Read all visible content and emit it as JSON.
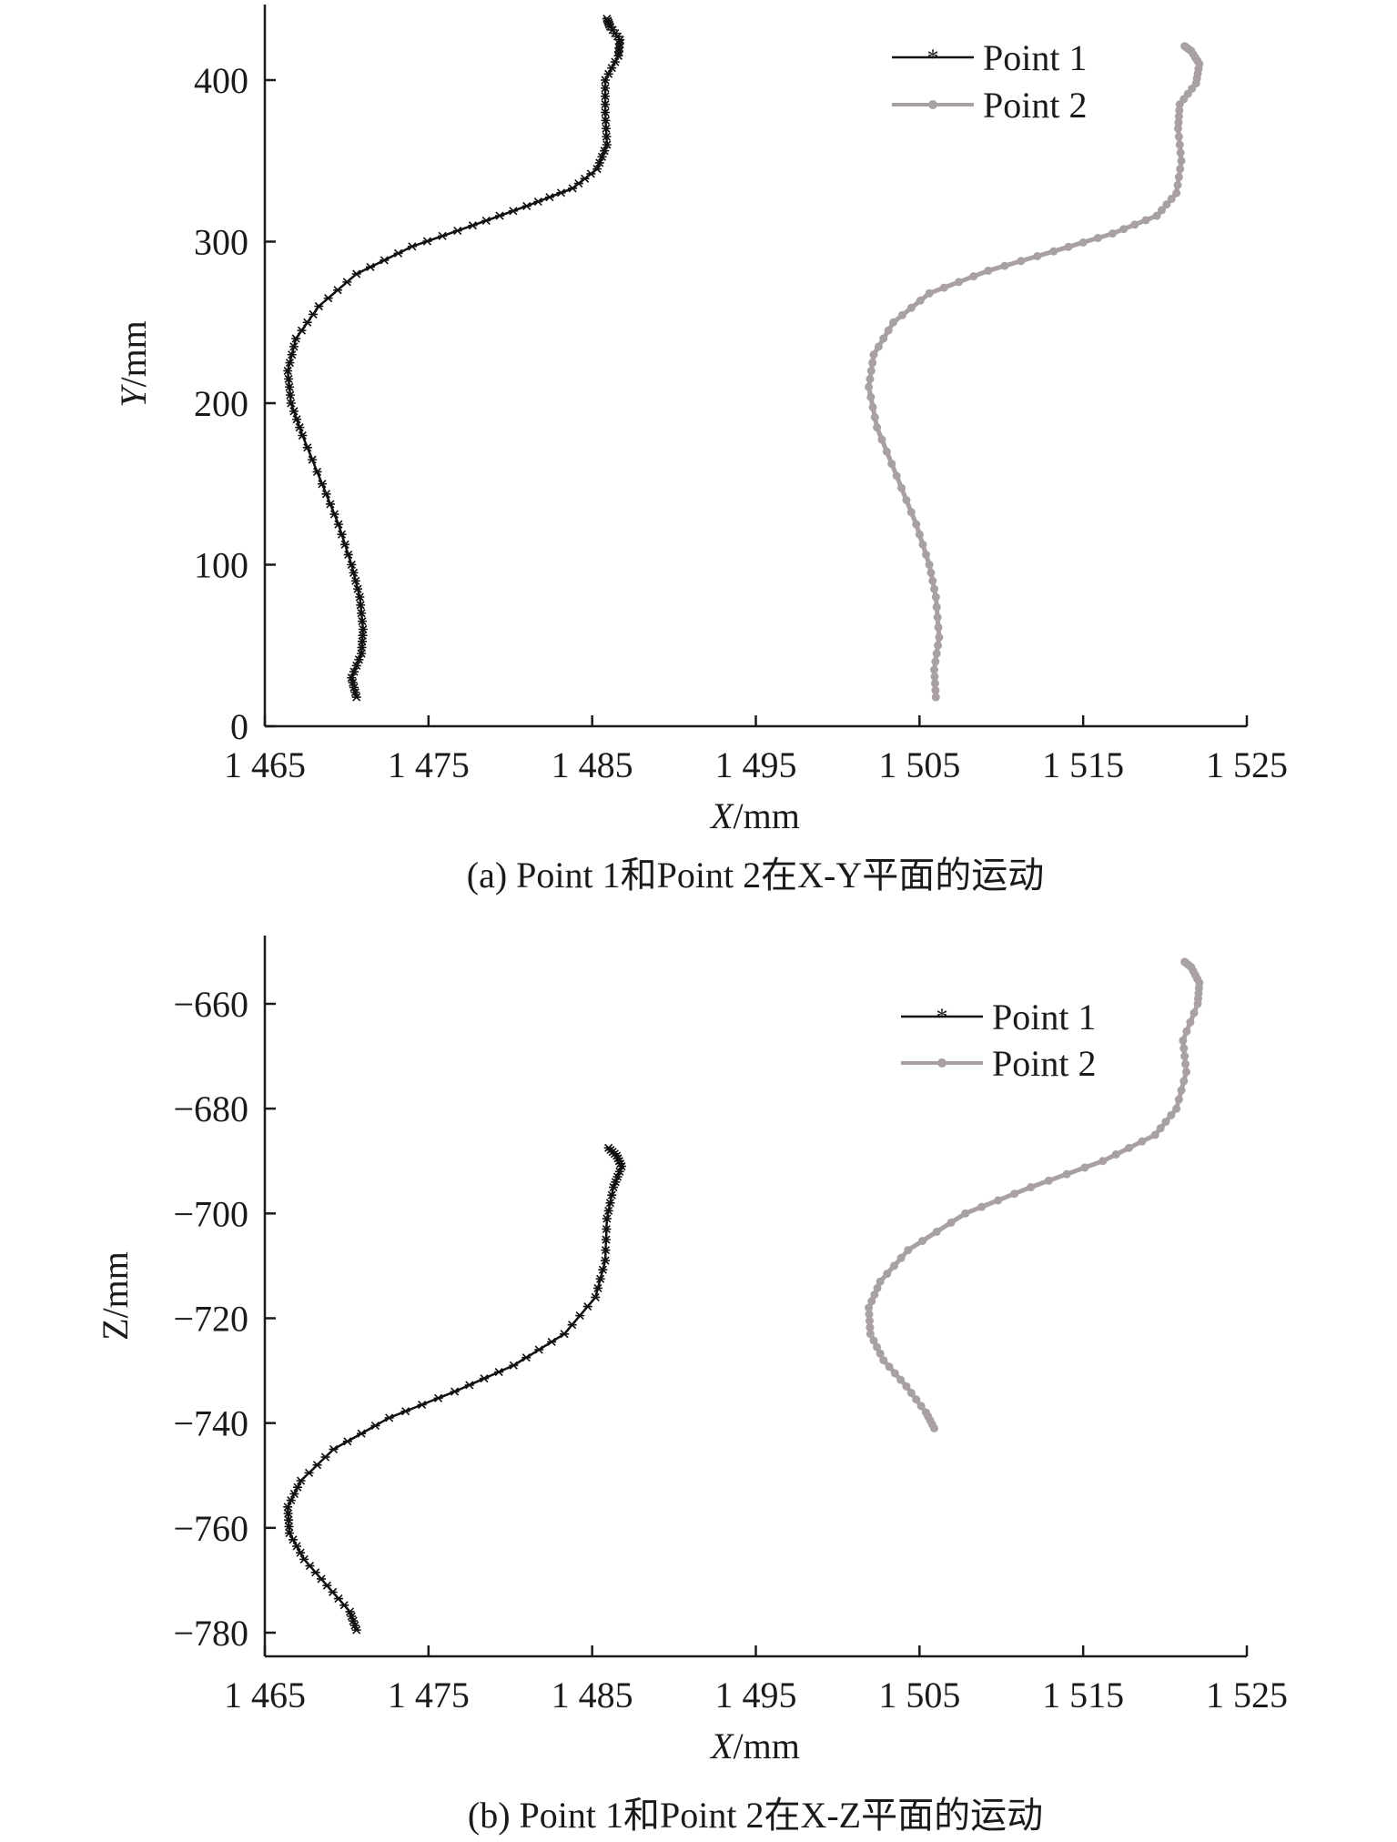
{
  "chart_data": [
    {
      "type": "line",
      "caption": "(a) Point 1和Point 2在X-Y平面的运动",
      "xlabel_var": "X",
      "xlabel_unit": "/mm",
      "ylabel_var": "Y",
      "ylabel_unit": "/mm",
      "xlim": [
        1465,
        1525
      ],
      "ylim": [
        0,
        440
      ],
      "xticks": [
        1465,
        1475,
        1485,
        1495,
        1505,
        1515,
        1525
      ],
      "xtick_labels": [
        "1 465",
        "1 475",
        "1 485",
        "1 495",
        "1 505",
        "1 515",
        "1 525"
      ],
      "yticks": [
        0,
        100,
        200,
        300,
        400
      ],
      "ytick_labels": [
        "0",
        "100",
        "200",
        "300",
        "400"
      ],
      "legend_position": "top-right",
      "grid": false,
      "series": [
        {
          "name": "Point 1",
          "color": "#111111",
          "marker": "star",
          "points": [
            [
              1470.6,
              18
            ],
            [
              1470.3,
              30
            ],
            [
              1470.9,
              45
            ],
            [
              1471.0,
              60
            ],
            [
              1470.8,
              80
            ],
            [
              1470.3,
              100
            ],
            [
              1469.5,
              125
            ],
            [
              1468.5,
              150
            ],
            [
              1467.3,
              180
            ],
            [
              1466.6,
              200
            ],
            [
              1466.4,
              220
            ],
            [
              1466.9,
              240
            ],
            [
              1468.3,
              260
            ],
            [
              1470.6,
              280
            ],
            [
              1474.0,
              297
            ],
            [
              1477.7,
              310
            ],
            [
              1481.0,
              322
            ],
            [
              1483.8,
              333
            ],
            [
              1485.3,
              345
            ],
            [
              1485.9,
              360
            ],
            [
              1485.8,
              380
            ],
            [
              1485.8,
              400
            ],
            [
              1486.6,
              415
            ],
            [
              1486.7,
              425
            ],
            [
              1486.1,
              433
            ],
            [
              1485.9,
              438
            ]
          ]
        },
        {
          "name": "Point 2",
          "color": "#a8a0a3",
          "marker": "circle",
          "points": [
            [
              1506.0,
              18
            ],
            [
              1505.9,
              35
            ],
            [
              1506.2,
              55
            ],
            [
              1506.0,
              80
            ],
            [
              1505.6,
              100
            ],
            [
              1504.8,
              125
            ],
            [
              1503.6,
              155
            ],
            [
              1502.4,
              185
            ],
            [
              1501.9,
              210
            ],
            [
              1502.2,
              230
            ],
            [
              1503.4,
              250
            ],
            [
              1505.6,
              268
            ],
            [
              1509.2,
              282
            ],
            [
              1513.2,
              294
            ],
            [
              1516.8,
              305
            ],
            [
              1519.5,
              316
            ],
            [
              1520.7,
              330
            ],
            [
              1521.0,
              350
            ],
            [
              1520.8,
              370
            ],
            [
              1520.9,
              385
            ],
            [
              1521.9,
              398
            ],
            [
              1522.1,
              410
            ],
            [
              1521.6,
              418
            ],
            [
              1521.2,
              421
            ]
          ]
        }
      ]
    },
    {
      "type": "line",
      "caption": "(b) Point 1和Point 2在X-Z平面的运动",
      "xlabel_var": "X",
      "xlabel_unit": "/mm",
      "ylabel_var": "Z",
      "ylabel_unit": "/mm",
      "xlim": [
        1465,
        1525
      ],
      "ylim": [
        -785,
        -647
      ],
      "xticks": [
        1465,
        1475,
        1485,
        1495,
        1505,
        1515,
        1525
      ],
      "xtick_labels": [
        "1 465",
        "1 475",
        "1 485",
        "1 495",
        "1 505",
        "1 515",
        "1 525"
      ],
      "yticks": [
        -660,
        -680,
        -700,
        -720,
        -740,
        -760,
        -780
      ],
      "ytick_labels": [
        "−660",
        "−680",
        "−700",
        "−720",
        "−740",
        "−760",
        "−780"
      ],
      "legend_position": "top-right",
      "grid": false,
      "series": [
        {
          "name": "Point 1",
          "color": "#111111",
          "marker": "star",
          "points": [
            [
              1470.6,
              -779.5
            ],
            [
              1470.2,
              -776
            ],
            [
              1468.8,
              -771
            ],
            [
              1467.4,
              -766
            ],
            [
              1466.5,
              -761
            ],
            [
              1466.4,
              -756
            ],
            [
              1467.2,
              -751
            ],
            [
              1469.2,
              -745
            ],
            [
              1472.6,
              -739
            ],
            [
              1476.6,
              -734
            ],
            [
              1480.2,
              -729
            ],
            [
              1483.3,
              -723
            ],
            [
              1485.2,
              -716
            ],
            [
              1485.8,
              -709
            ],
            [
              1485.9,
              -701
            ],
            [
              1486.3,
              -695
            ],
            [
              1486.8,
              -691
            ],
            [
              1486.5,
              -689
            ],
            [
              1486.0,
              -687.5
            ]
          ]
        },
        {
          "name": "Point 2",
          "color": "#a8a0a3",
          "marker": "circle",
          "points": [
            [
              1505.9,
              -741
            ],
            [
              1505.4,
              -738
            ],
            [
              1504.2,
              -733
            ],
            [
              1502.8,
              -728
            ],
            [
              1502.0,
              -723
            ],
            [
              1501.9,
              -718
            ],
            [
              1502.6,
              -713
            ],
            [
              1504.3,
              -707
            ],
            [
              1507.8,
              -700
            ],
            [
              1511.8,
              -695
            ],
            [
              1516.2,
              -690
            ],
            [
              1519.4,
              -685
            ],
            [
              1520.7,
              -680
            ],
            [
              1521.3,
              -673
            ],
            [
              1521.1,
              -667
            ],
            [
              1522.0,
              -660
            ],
            [
              1522.1,
              -656
            ],
            [
              1521.6,
              -653
            ],
            [
              1521.2,
              -652
            ]
          ]
        }
      ]
    }
  ]
}
